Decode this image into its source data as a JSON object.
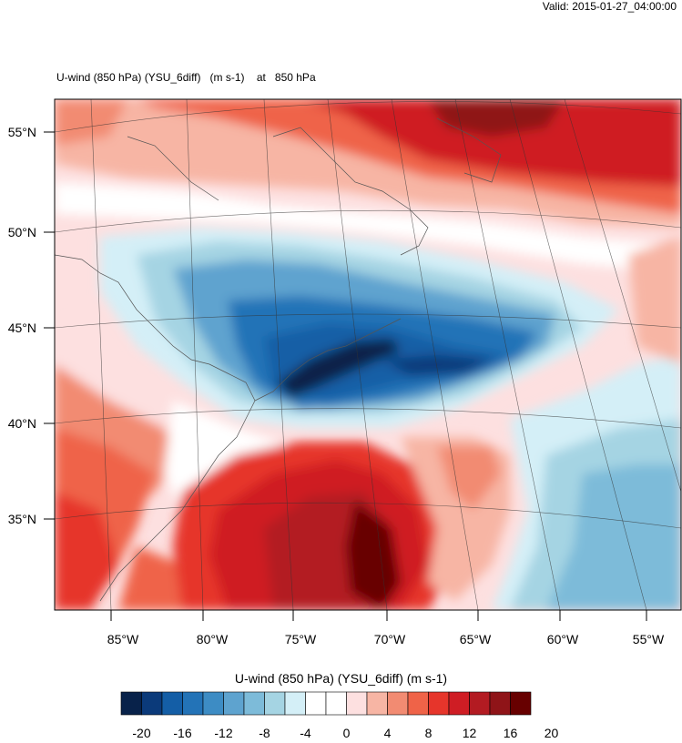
{
  "header": {
    "valid_label": "Valid: 2015-01-27_04:00:00",
    "title_field": "U-wind (850 hPa) (YSU_6diff)",
    "title_units": "(m s-1)",
    "title_at": "at",
    "title_level": "850 hPa"
  },
  "map": {
    "lat_labels": [
      "55°N",
      "50°N",
      "45°N",
      "40°N",
      "35°N"
    ],
    "lon_labels": [
      "85°W",
      "80°W",
      "75°W",
      "70°W",
      "65°W",
      "60°W",
      "55°W"
    ]
  },
  "colorbar": {
    "title": "U-wind (850 hPa) (YSU_6diff)  (m s-1)",
    "tick_labels": [
      "-20",
      "-16",
      "-12",
      "-8",
      "-4",
      "0",
      "4",
      "8",
      "12",
      "16",
      "20"
    ],
    "colors": [
      "#08224a",
      "#0b3a7a",
      "#145ea6",
      "#2373b7",
      "#3d8cc4",
      "#5ea3cf",
      "#7dbbd9",
      "#a5d4e3",
      "#d4eff7",
      "#ffffff",
      "#ffffff",
      "#fde0e0",
      "#f7b5a4",
      "#f28b72",
      "#ef6348",
      "#e6352b",
      "#cf1d24",
      "#b31b22",
      "#8f1418",
      "#670000"
    ]
  }
}
